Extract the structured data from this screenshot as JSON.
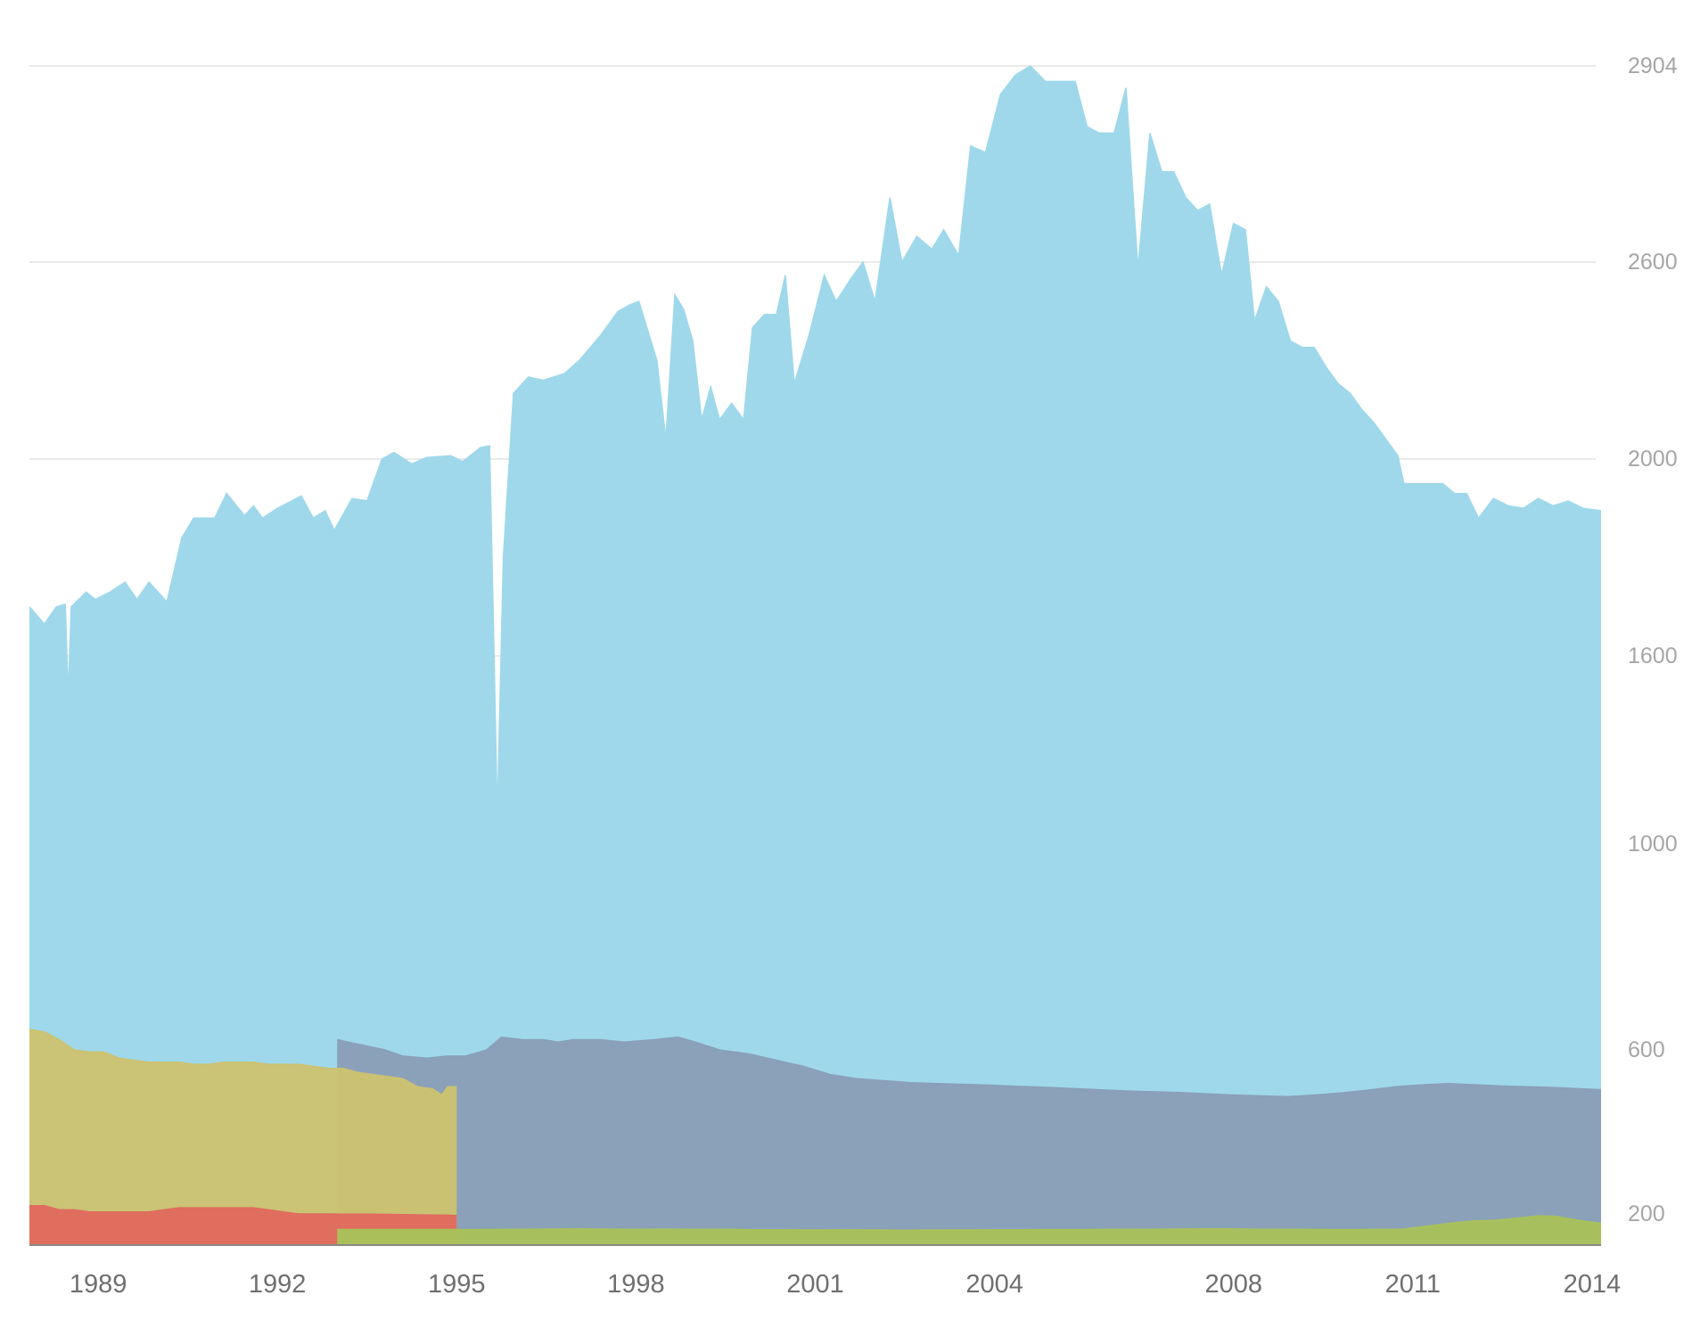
{
  "chart_data": {
    "type": "area",
    "title": "",
    "xlabel": "",
    "ylabel": "",
    "xlim": [
      1987.85,
      2014.15
    ],
    "ylim": [
      0,
      2904
    ],
    "y_axis_position": "right",
    "grid": "horizontal",
    "y_ticks": [
      200,
      600,
      1000,
      1600,
      2000,
      2600,
      2904
    ],
    "y_tick_labels": [
      "200",
      "600",
      "1000",
      "1600",
      "2000",
      "2600",
      "2904"
    ],
    "x_ticks": [
      1989,
      1992,
      1995,
      1998,
      2001,
      2004,
      2008,
      2011,
      2014
    ],
    "x_tick_labels": [
      "1989",
      "1992",
      "1995",
      "1998",
      "2001",
      "2004",
      "2008",
      "2011",
      "2014"
    ],
    "series": [
      {
        "color": "#9fd8eb",
        "values": [
          [
            1987.85,
            1700
          ],
          [
            1988.1,
            1665
          ],
          [
            1988.3,
            1700
          ],
          [
            1988.45,
            1705
          ],
          [
            1988.5,
            1475
          ],
          [
            1988.55,
            1700
          ],
          [
            1988.8,
            1730
          ],
          [
            1988.95,
            1715
          ],
          [
            1989.2,
            1730
          ],
          [
            1989.45,
            1750
          ],
          [
            1989.65,
            1715
          ],
          [
            1989.85,
            1750
          ],
          [
            1990.15,
            1710
          ],
          [
            1990.4,
            1840
          ],
          [
            1990.6,
            1880
          ],
          [
            1990.95,
            1880
          ],
          [
            1991.15,
            1930
          ],
          [
            1991.45,
            1885
          ],
          [
            1991.6,
            1905
          ],
          [
            1991.75,
            1880
          ],
          [
            1992.0,
            1900
          ],
          [
            1992.4,
            1925
          ],
          [
            1992.6,
            1880
          ],
          [
            1992.8,
            1895
          ],
          [
            1992.95,
            1855
          ],
          [
            1993.25,
            1920
          ],
          [
            1993.5,
            1915
          ],
          [
            1993.75,
            2000
          ],
          [
            1993.95,
            2020
          ],
          [
            1994.25,
            1990
          ],
          [
            1994.5,
            2005
          ],
          [
            1994.9,
            2010
          ],
          [
            1995.1,
            1995
          ],
          [
            1995.4,
            2035
          ],
          [
            1995.55,
            2040
          ],
          [
            1995.62,
            1630
          ],
          [
            1995.68,
            1090
          ],
          [
            1995.78,
            1800
          ],
          [
            1995.95,
            2200
          ],
          [
            1996.2,
            2250
          ],
          [
            1996.45,
            2240
          ],
          [
            1996.8,
            2260
          ],
          [
            1997.05,
            2300
          ],
          [
            1997.4,
            2375
          ],
          [
            1997.7,
            2450
          ],
          [
            1997.9,
            2470
          ],
          [
            1998.05,
            2480
          ],
          [
            1998.2,
            2390
          ],
          [
            1998.35,
            2300
          ],
          [
            1998.5,
            2060
          ],
          [
            1998.65,
            2500
          ],
          [
            1998.8,
            2455
          ],
          [
            1998.95,
            2360
          ],
          [
            1999.1,
            2120
          ],
          [
            1999.25,
            2220
          ],
          [
            1999.4,
            2120
          ],
          [
            1999.6,
            2170
          ],
          [
            1999.8,
            2120
          ],
          [
            1999.95,
            2400
          ],
          [
            2000.15,
            2440
          ],
          [
            2000.35,
            2440
          ],
          [
            2000.5,
            2560
          ],
          [
            2000.65,
            2230
          ],
          [
            2000.9,
            2380
          ],
          [
            2001.15,
            2560
          ],
          [
            2001.35,
            2480
          ],
          [
            2001.6,
            2550
          ],
          [
            2001.8,
            2600
          ],
          [
            2002.0,
            2480
          ],
          [
            2002.25,
            2700
          ],
          [
            2002.45,
            2600
          ],
          [
            2002.7,
            2640
          ],
          [
            2002.95,
            2620
          ],
          [
            2003.15,
            2650
          ],
          [
            2003.4,
            2610
          ],
          [
            2003.6,
            2780
          ],
          [
            2003.85,
            2770
          ],
          [
            2004.1,
            2860
          ],
          [
            2004.35,
            2890
          ],
          [
            2004.6,
            2904
          ],
          [
            2004.85,
            2880
          ],
          [
            2005.1,
            2880
          ],
          [
            2005.35,
            2880
          ],
          [
            2005.55,
            2810
          ],
          [
            2005.75,
            2800
          ],
          [
            2006.0,
            2800
          ],
          [
            2006.2,
            2870
          ],
          [
            2006.4,
            2580
          ],
          [
            2006.6,
            2800
          ],
          [
            2006.8,
            2740
          ],
          [
            2007.0,
            2740
          ],
          [
            2007.2,
            2700
          ],
          [
            2007.4,
            2680
          ],
          [
            2007.6,
            2690
          ],
          [
            2007.8,
            2560
          ],
          [
            2008.0,
            2660
          ],
          [
            2008.2,
            2650
          ],
          [
            2008.35,
            2420
          ],
          [
            2008.55,
            2525
          ],
          [
            2008.75,
            2480
          ],
          [
            2008.95,
            2360
          ],
          [
            2009.15,
            2340
          ],
          [
            2009.35,
            2340
          ],
          [
            2009.55,
            2280
          ],
          [
            2009.75,
            2230
          ],
          [
            2009.95,
            2200
          ],
          [
            2010.15,
            2150
          ],
          [
            2010.35,
            2110
          ],
          [
            2010.55,
            2060
          ],
          [
            2010.75,
            2010
          ],
          [
            2010.85,
            1950
          ],
          [
            2011.05,
            1950
          ],
          [
            2011.25,
            1950
          ],
          [
            2011.5,
            1950
          ],
          [
            2011.7,
            1930
          ],
          [
            2011.9,
            1930
          ],
          [
            2012.1,
            1880
          ],
          [
            2012.35,
            1920
          ],
          [
            2012.6,
            1905
          ],
          [
            2012.85,
            1900
          ],
          [
            2013.1,
            1920
          ],
          [
            2013.35,
            1905
          ],
          [
            2013.6,
            1915
          ],
          [
            2013.85,
            1900
          ],
          [
            2014.15,
            1895
          ]
        ]
      },
      {
        "color": "#8a9fb8",
        "values": [
          [
            1993.0,
            620
          ],
          [
            1993.4,
            610
          ],
          [
            1993.8,
            600
          ],
          [
            1994.1,
            585
          ],
          [
            1994.5,
            580
          ],
          [
            1994.85,
            585
          ],
          [
            1995.15,
            585
          ],
          [
            1995.5,
            600
          ],
          [
            1995.75,
            625
          ],
          [
            1996.1,
            620
          ],
          [
            1996.45,
            620
          ],
          [
            1996.7,
            615
          ],
          [
            1996.95,
            620
          ],
          [
            1997.4,
            620
          ],
          [
            1997.8,
            615
          ],
          [
            1998.3,
            620
          ],
          [
            1998.7,
            625
          ],
          [
            1999.0,
            615
          ],
          [
            1999.4,
            600
          ],
          [
            1999.9,
            590
          ],
          [
            2000.35,
            575
          ],
          [
            2000.8,
            560
          ],
          [
            2001.25,
            540
          ],
          [
            2001.7,
            530
          ],
          [
            2002.15,
            525
          ],
          [
            2002.6,
            520
          ],
          [
            2003.05,
            518
          ],
          [
            2003.5,
            516
          ],
          [
            2003.95,
            514
          ],
          [
            2004.4,
            511
          ],
          [
            2004.85,
            509
          ],
          [
            2005.3,
            506
          ],
          [
            2005.75,
            503
          ],
          [
            2006.2,
            500
          ],
          [
            2006.65,
            498
          ],
          [
            2007.1,
            496
          ],
          [
            2007.55,
            493
          ],
          [
            2008.0,
            490
          ],
          [
            2008.45,
            488
          ],
          [
            2008.9,
            486
          ],
          [
            2009.35,
            490
          ],
          [
            2009.8,
            495
          ],
          [
            2010.25,
            502
          ],
          [
            2010.7,
            510
          ],
          [
            2011.15,
            515
          ],
          [
            2011.6,
            518
          ],
          [
            2012.05,
            515
          ],
          [
            2012.5,
            512
          ],
          [
            2012.95,
            510
          ],
          [
            2013.4,
            508
          ],
          [
            2013.85,
            505
          ],
          [
            2014.15,
            503
          ]
        ]
      },
      {
        "color": "#ccc271",
        "values": [
          [
            1987.85,
            640
          ],
          [
            1988.1,
            635
          ],
          [
            1988.35,
            620
          ],
          [
            1988.6,
            600
          ],
          [
            1988.85,
            595
          ],
          [
            1989.1,
            595
          ],
          [
            1989.35,
            580
          ],
          [
            1989.6,
            575
          ],
          [
            1989.85,
            570
          ],
          [
            1990.1,
            570
          ],
          [
            1990.35,
            570
          ],
          [
            1990.6,
            565
          ],
          [
            1990.85,
            565
          ],
          [
            1991.1,
            570
          ],
          [
            1991.35,
            570
          ],
          [
            1991.6,
            570
          ],
          [
            1991.85,
            565
          ],
          [
            1992.1,
            565
          ],
          [
            1992.35,
            565
          ],
          [
            1992.6,
            560
          ],
          [
            1992.85,
            555
          ],
          [
            1993.1,
            555
          ],
          [
            1993.35,
            545
          ],
          [
            1993.6,
            540
          ],
          [
            1993.85,
            535
          ],
          [
            1994.1,
            530
          ],
          [
            1994.35,
            510
          ],
          [
            1994.6,
            505
          ],
          [
            1994.75,
            490
          ],
          [
            1994.85,
            510
          ],
          [
            1995.0,
            510
          ]
        ]
      },
      {
        "color": "#e06b5d",
        "values": [
          [
            1987.85,
            220
          ],
          [
            1988.1,
            220
          ],
          [
            1988.35,
            210
          ],
          [
            1988.6,
            210
          ],
          [
            1988.85,
            205
          ],
          [
            1989.1,
            205
          ],
          [
            1989.35,
            205
          ],
          [
            1989.6,
            205
          ],
          [
            1989.85,
            205
          ],
          [
            1990.1,
            210
          ],
          [
            1990.35,
            215
          ],
          [
            1990.6,
            215
          ],
          [
            1990.85,
            215
          ],
          [
            1991.1,
            215
          ],
          [
            1991.35,
            215
          ],
          [
            1991.6,
            215
          ],
          [
            1991.85,
            210
          ],
          [
            1992.1,
            205
          ],
          [
            1992.35,
            200
          ],
          [
            1992.6,
            200
          ],
          [
            1992.85,
            200
          ],
          [
            1993.1,
            198
          ],
          [
            1993.35,
            198
          ],
          [
            1993.6,
            198
          ],
          [
            1993.85,
            197
          ],
          [
            1994.1,
            196
          ],
          [
            1994.35,
            194
          ],
          [
            1994.6,
            193
          ],
          [
            1994.85,
            192
          ],
          [
            1995.0,
            190
          ]
        ]
      },
      {
        "color": "#a8c15a",
        "values": [
          [
            1993.0,
            100
          ],
          [
            1993.5,
            100
          ],
          [
            1994.0,
            100
          ],
          [
            1994.5,
            100
          ],
          [
            1995.0,
            100
          ],
          [
            1995.5,
            100
          ],
          [
            1996.0,
            102
          ],
          [
            1996.5,
            103
          ],
          [
            1997.0,
            104
          ],
          [
            1997.5,
            103
          ],
          [
            1998.0,
            102
          ],
          [
            1998.5,
            103
          ],
          [
            1999.0,
            102
          ],
          [
            1999.5,
            101
          ],
          [
            2000.0,
            99
          ],
          [
            2000.5,
            98
          ],
          [
            2001.0,
            97
          ],
          [
            2001.5,
            98
          ],
          [
            2002.0,
            97
          ],
          [
            2002.5,
            96
          ],
          [
            2003.0,
            97
          ],
          [
            2003.5,
            97
          ],
          [
            2004.0,
            98
          ],
          [
            2004.5,
            99
          ],
          [
            2005.0,
            100
          ],
          [
            2005.5,
            100
          ],
          [
            2006.0,
            101
          ],
          [
            2006.5,
            102
          ],
          [
            2007.0,
            103
          ],
          [
            2007.5,
            104
          ],
          [
            2008.0,
            104
          ],
          [
            2008.5,
            102
          ],
          [
            2009.0,
            101
          ],
          [
            2009.5,
            100
          ],
          [
            2010.0,
            100
          ],
          [
            2010.5,
            101
          ],
          [
            2010.8,
            102
          ],
          [
            2011.2,
            120
          ],
          [
            2011.6,
            140
          ],
          [
            2012.0,
            155
          ],
          [
            2012.4,
            160
          ],
          [
            2012.8,
            175
          ],
          [
            2013.1,
            188
          ],
          [
            2013.4,
            185
          ],
          [
            2013.6,
            170
          ],
          [
            2013.85,
            155
          ],
          [
            2014.15,
            140
          ]
        ]
      }
    ]
  }
}
